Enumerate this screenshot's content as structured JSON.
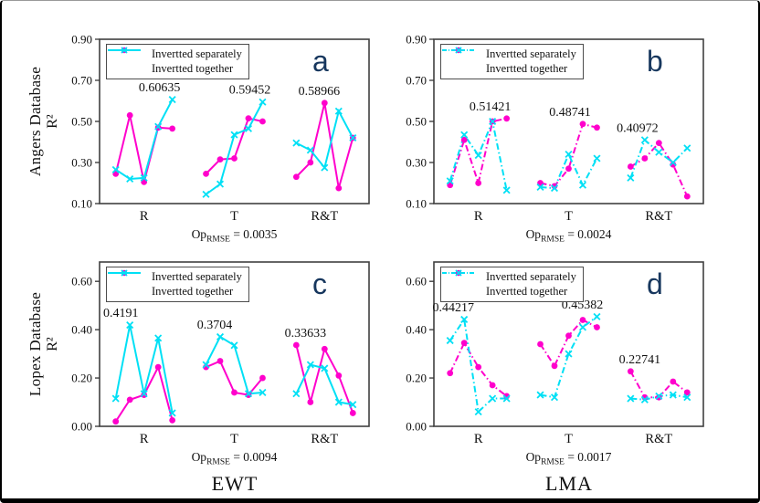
{
  "figure": {
    "legend": {
      "separately": "Invertted separately",
      "together": "Invertted together"
    },
    "colors": {
      "separately": "#FF00CC",
      "together": "#00E0F5",
      "letter": "#17375E",
      "box_border": "#404040"
    },
    "row_labels": [
      {
        "database": "Angers Database",
        "metric": "R²"
      },
      {
        "database": "Lopex Database",
        "metric": "R²"
      }
    ],
    "column_titles": [
      "EWT",
      "LMA"
    ]
  },
  "chart_data": [
    {
      "type": "line",
      "letter": "a",
      "line_style": "solid",
      "ylim": [
        0.1,
        0.9
      ],
      "yticks": [
        0.1,
        0.3,
        0.5,
        0.7,
        0.9
      ],
      "ytick_labels": [
        "0.10",
        "0.30",
        "0.50",
        "0.70",
        "0.90"
      ],
      "groups": [
        "R",
        "T",
        "R&T"
      ],
      "series": [
        {
          "key": "separately",
          "name": "Invertted separately",
          "marker": "circle",
          "values": {
            "R": [
              0.245,
              0.53,
              0.205,
              0.47,
              0.465
            ],
            "T": [
              0.245,
              0.315,
              0.32,
              0.515,
              0.5
            ],
            "R&T": [
              0.23,
              0.3,
              0.58966,
              0.175,
              0.42
            ]
          }
        },
        {
          "key": "together",
          "name": "Invertted together",
          "marker": "x",
          "values": {
            "R": [
              0.265,
              0.22,
              0.225,
              0.475,
              0.60635
            ],
            "T": [
              0.145,
              0.195,
              0.435,
              0.465,
              0.59452
            ],
            "R&T": [
              0.395,
              0.36,
              0.275,
              0.55,
              0.42
            ]
          }
        }
      ],
      "annotations": [
        {
          "text": "0.60635",
          "group": "R",
          "series": "together",
          "point": 4,
          "dx": -14
        },
        {
          "text": "0.59452",
          "group": "T",
          "series": "together",
          "point": 4,
          "dx": -14
        },
        {
          "text": "0.58966",
          "group": "R&T",
          "series": "separately",
          "point": 2,
          "dx": -6
        }
      ],
      "op": {
        "prefix": "Op",
        "sub": "RMSE",
        "value": "= 0.0035"
      }
    },
    {
      "type": "line",
      "letter": "b",
      "line_style": "dashdot",
      "ylim": [
        0.1,
        0.9
      ],
      "yticks": [
        0.1,
        0.3,
        0.5,
        0.7,
        0.9
      ],
      "ytick_labels": [
        "0.10",
        "0.30",
        "0.50",
        "0.70",
        "0.90"
      ],
      "groups": [
        "R",
        "T",
        "R&T"
      ],
      "series": [
        {
          "key": "separately",
          "name": "Invertted separately",
          "marker": "circle",
          "values": {
            "R": [
              0.19,
              0.41,
              0.2,
              0.5,
              0.51421
            ],
            "T": [
              0.2,
              0.185,
              0.27,
              0.48741,
              0.47
            ],
            "R&T": [
              0.28,
              0.32,
              0.395,
              0.29,
              0.135
            ]
          }
        },
        {
          "key": "together",
          "name": "Invertted together",
          "marker": "x",
          "values": {
            "R": [
              0.21,
              0.435,
              0.335,
              0.5,
              0.165
            ],
            "T": [
              0.18,
              0.175,
              0.34,
              0.19,
              0.32
            ],
            "R&T": [
              0.225,
              0.40972,
              0.35,
              0.3,
              0.37
            ]
          }
        }
      ],
      "annotations": [
        {
          "text": "0.51421",
          "group": "R",
          "series": "separately",
          "point": 4,
          "dx": -18
        },
        {
          "text": "0.48741",
          "group": "T",
          "series": "separately",
          "point": 3,
          "dx": -14
        },
        {
          "text": "0.40972",
          "group": "R&T",
          "series": "together",
          "point": 1,
          "dx": -8
        }
      ],
      "op": {
        "prefix": "Op",
        "sub": "RMSE",
        "value": "= 0.0024"
      }
    },
    {
      "type": "line",
      "letter": "c",
      "line_style": "solid",
      "ylim": [
        0.0,
        0.68
      ],
      "yticks": [
        0.0,
        0.2,
        0.4,
        0.6
      ],
      "ytick_labels": [
        "0.00",
        "0.20",
        "0.40",
        "0.60"
      ],
      "groups": [
        "R",
        "T",
        "R&T"
      ],
      "series": [
        {
          "key": "separately",
          "name": "Invertted separately",
          "marker": "circle",
          "values": {
            "R": [
              0.02,
              0.11,
              0.13,
              0.245,
              0.025
            ],
            "T": [
              0.245,
              0.27,
              0.14,
              0.13,
              0.2
            ],
            "R&T": [
              0.33633,
              0.1,
              0.32,
              0.21,
              0.055
            ]
          }
        },
        {
          "key": "together",
          "name": "Invertted together",
          "marker": "x",
          "values": {
            "R": [
              0.115,
              0.4191,
              0.135,
              0.365,
              0.055
            ],
            "T": [
              0.255,
              0.3704,
              0.335,
              0.135,
              0.14
            ],
            "R&T": [
              0.135,
              0.255,
              0.24,
              0.1,
              0.09
            ]
          }
        }
      ],
      "annotations": [
        {
          "text": "0.4191",
          "group": "R",
          "series": "together",
          "point": 1,
          "dx": -10
        },
        {
          "text": "0.3704",
          "group": "T",
          "series": "together",
          "point": 1,
          "dx": -6
        },
        {
          "text": "0.33633",
          "group": "R&T",
          "series": "separately",
          "point": 0,
          "dx": 10
        }
      ],
      "op": {
        "prefix": "Op",
        "sub": "RMSE",
        "value": "= 0.0094"
      }
    },
    {
      "type": "line",
      "letter": "d",
      "line_style": "dashdot",
      "ylim": [
        0.0,
        0.68
      ],
      "yticks": [
        0.0,
        0.2,
        0.4,
        0.6
      ],
      "ytick_labels": [
        "0.00",
        "0.20",
        "0.40",
        "0.60"
      ],
      "groups": [
        "R",
        "T",
        "R&T"
      ],
      "series": [
        {
          "key": "separately",
          "name": "Invertted separately",
          "marker": "circle",
          "values": {
            "R": [
              0.22,
              0.345,
              0.245,
              0.17,
              0.125
            ],
            "T": [
              0.34,
              0.25,
              0.375,
              0.44,
              0.41
            ],
            "R&T": [
              0.22741,
              0.12,
              0.12,
              0.185,
              0.14
            ]
          }
        },
        {
          "key": "together",
          "name": "Invertted together",
          "marker": "x",
          "values": {
            "R": [
              0.355,
              0.44217,
              0.06,
              0.115,
              0.115
            ],
            "T": [
              0.13,
              0.12,
              0.3,
              0.41,
              0.45382
            ],
            "R&T": [
              0.115,
              0.11,
              0.125,
              0.13,
              0.12
            ]
          }
        }
      ],
      "annotations": [
        {
          "text": "0.44217",
          "group": "R",
          "series": "together",
          "point": 1,
          "dx": -12
        },
        {
          "text": "0.45382",
          "group": "T",
          "series": "together",
          "point": 4,
          "dx": -16
        },
        {
          "text": "0.22741",
          "group": "R&T",
          "series": "separately",
          "point": 0,
          "dx": 10
        }
      ],
      "op": {
        "prefix": "Op",
        "sub": "RMSE",
        "value": "= 0.0017"
      }
    }
  ]
}
